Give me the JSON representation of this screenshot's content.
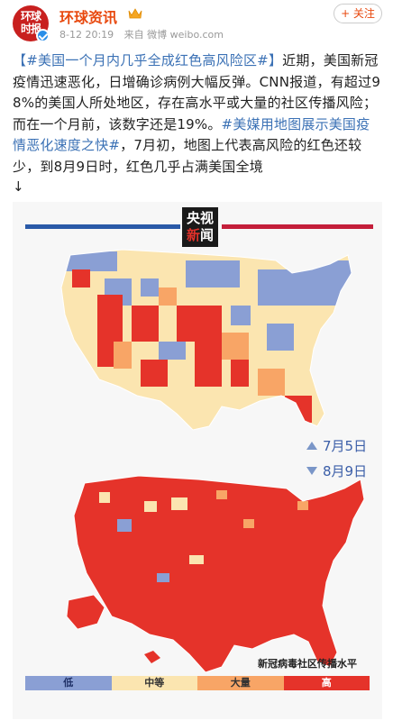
{
  "header": {
    "avatar_text": "环球\n时报",
    "username": "环球资讯",
    "time": "8-12 20:19",
    "source": "来自 微博 weibo.com",
    "follow_label": "+ 关注"
  },
  "post": {
    "tag1": "【#美国一个月内几乎全成红色高风险区#】",
    "text1": "近期，美国新冠疫情迅速恶化，日增确诊病例大幅反弹。CNN报道，有超过98%的美国人所处地区，存在高水平或大量的社区传播风险；而在一个月前，该数字还是19%。",
    "tag2": "#美媒用地图展示美国疫情恶化速度之快#",
    "text2": "，7月初，地图上代表高风险的红色还较少，到8月9日时，红色几乎占满美国全境",
    "arrow": "↓"
  },
  "news_image": {
    "logo_line1": "央视",
    "logo_line2a": "新",
    "logo_line2b": "闻",
    "date1": "7月5日",
    "date2": "8月9日",
    "legend_title": "新冠病毒社区传播水平",
    "legend": [
      {
        "label": "低",
        "color": "#8a9fd4"
      },
      {
        "label": "中等",
        "color": "#fbe5b0"
      },
      {
        "label": "大量",
        "color": "#f8a566"
      },
      {
        "label": "高",
        "color": "#e5332a"
      }
    ],
    "map_colors": {
      "low": "#8a9fd4",
      "moderate": "#fbe5b0",
      "substantial": "#f8a566",
      "high": "#e5332a"
    }
  }
}
